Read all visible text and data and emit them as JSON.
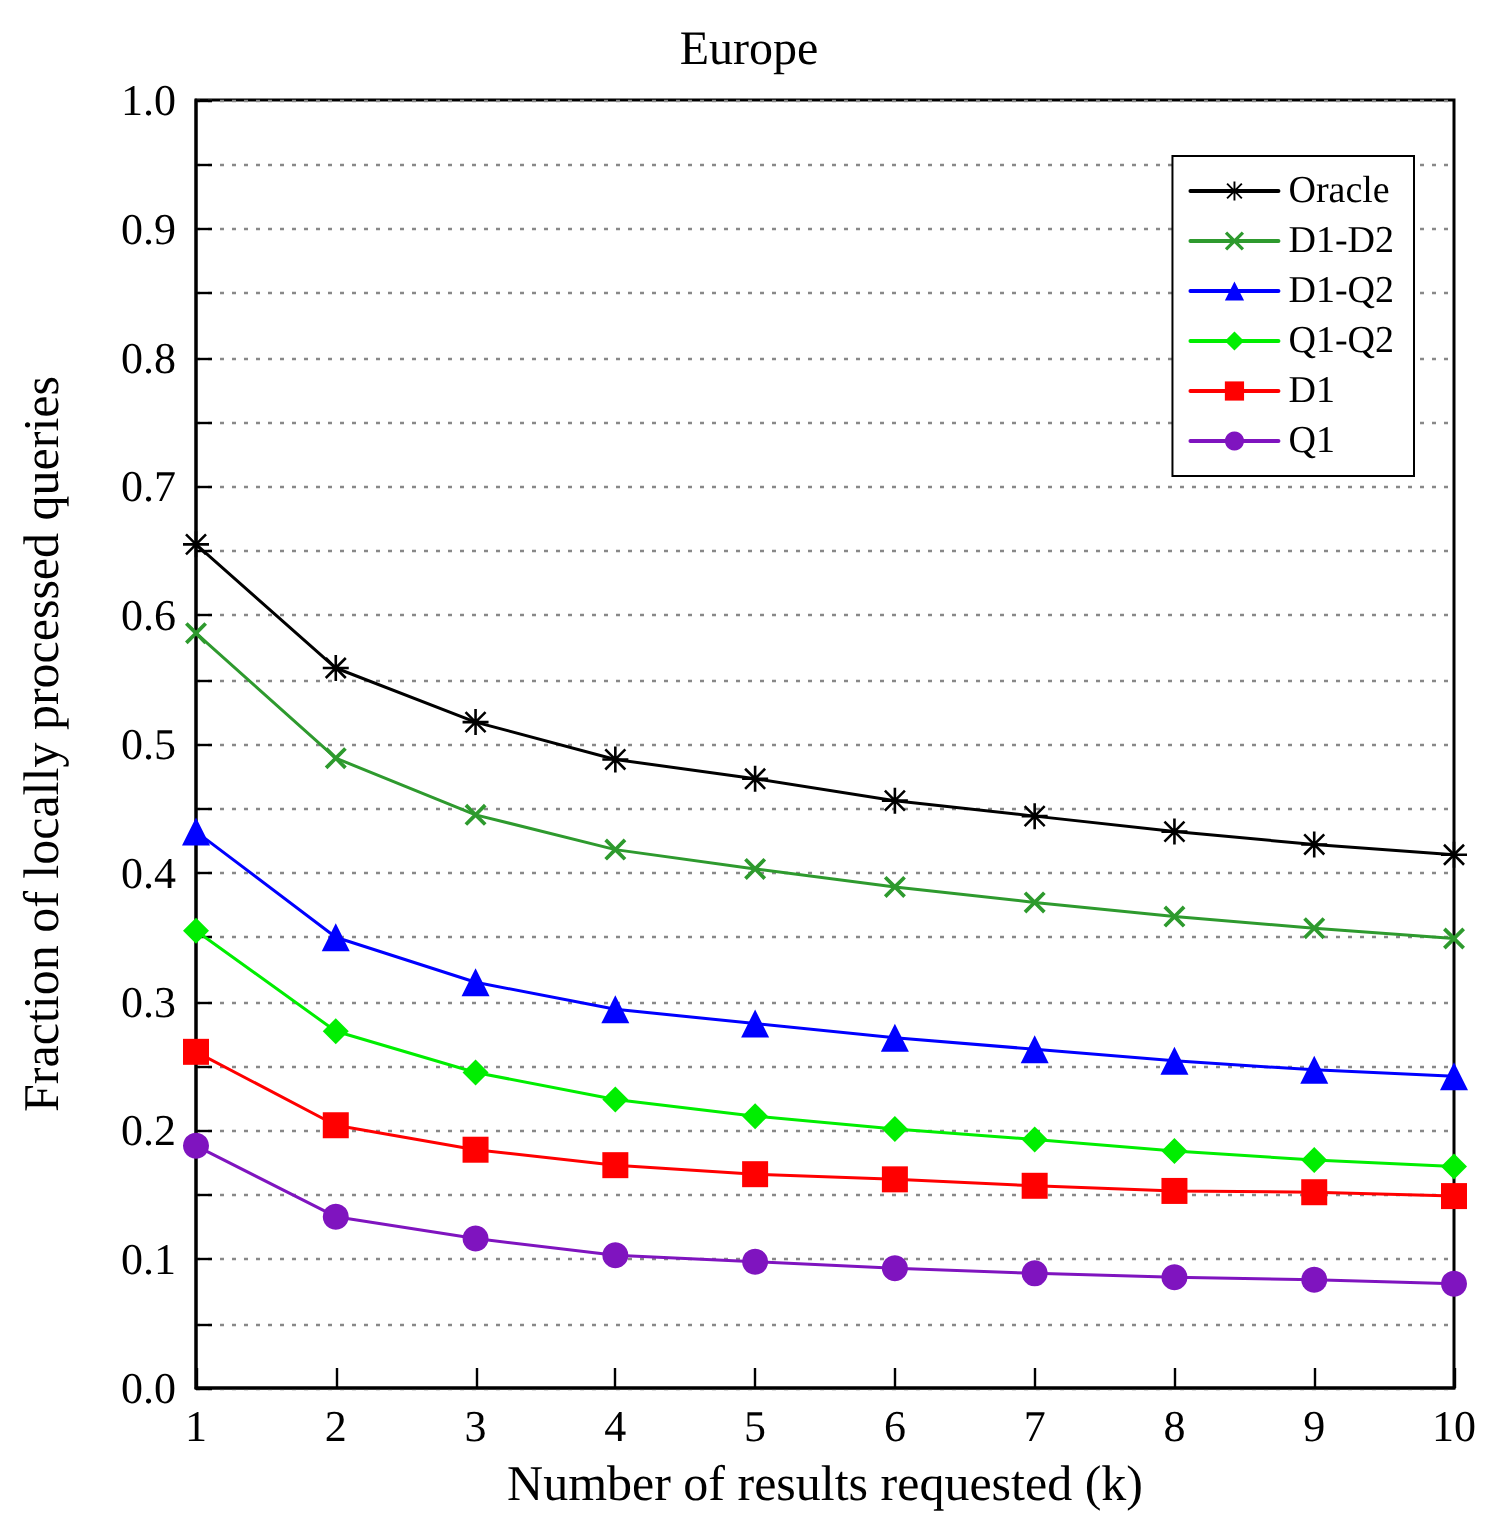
{
  "chart_data": {
    "type": "line",
    "title": "Europe",
    "xlabel": "Number of results requested (k)",
    "ylabel": "Fraction of locally processed queries",
    "x": [
      1,
      2,
      3,
      4,
      5,
      6,
      7,
      8,
      9,
      10
    ],
    "series": [
      {
        "name": "Oracle",
        "color": "#000000",
        "marker": "star",
        "values": [
          0.655,
          0.559,
          0.517,
          0.488,
          0.473,
          0.456,
          0.444,
          0.432,
          0.422,
          0.414
        ]
      },
      {
        "name": "D1-D2",
        "color": "#2e9a2e",
        "marker": "cross",
        "values": [
          0.586,
          0.489,
          0.445,
          0.418,
          0.403,
          0.389,
          0.377,
          0.366,
          0.357,
          0.349
        ]
      },
      {
        "name": "D1-Q2",
        "color": "#0000ff",
        "marker": "triangle",
        "values": [
          0.432,
          0.35,
          0.315,
          0.294,
          0.283,
          0.272,
          0.263,
          0.254,
          0.247,
          0.242
        ]
      },
      {
        "name": "Q1-Q2",
        "color": "#00ee00",
        "marker": "diamond",
        "values": [
          0.355,
          0.277,
          0.245,
          0.224,
          0.211,
          0.201,
          0.193,
          0.184,
          0.177,
          0.172
        ]
      },
      {
        "name": "D1",
        "color": "#ff0000",
        "marker": "square",
        "values": [
          0.261,
          0.204,
          0.185,
          0.173,
          0.166,
          0.162,
          0.157,
          0.153,
          0.152,
          0.149
        ]
      },
      {
        "name": "Q1",
        "color": "#7f14bf",
        "marker": "circle",
        "values": [
          0.188,
          0.133,
          0.116,
          0.103,
          0.098,
          0.093,
          0.089,
          0.086,
          0.084,
          0.081
        ]
      }
    ],
    "xlim": [
      1,
      10
    ],
    "xticks": [
      1,
      2,
      3,
      4,
      5,
      6,
      7,
      8,
      9,
      10
    ],
    "ylim": [
      0,
      1
    ],
    "yticks": [
      {
        "value": 0,
        "label": "0.0"
      },
      {
        "value": 0.05,
        "label": null
      },
      {
        "value": 0.1,
        "label": "0.1"
      },
      {
        "value": 0.15,
        "label": null
      },
      {
        "value": 0.2,
        "label": "0.2"
      },
      {
        "value": 0.25,
        "label": null
      },
      {
        "value": 0.3,
        "label": "0.3"
      },
      {
        "value": 0.35,
        "label": null
      },
      {
        "value": 0.4,
        "label": "0.4"
      },
      {
        "value": 0.45,
        "label": null
      },
      {
        "value": 0.5,
        "label": "0.5"
      },
      {
        "value": 0.55,
        "label": null
      },
      {
        "value": 0.6,
        "label": "0.6"
      },
      {
        "value": 0.65,
        "label": null
      },
      {
        "value": 0.7,
        "label": "0.7"
      },
      {
        "value": 0.75,
        "label": null
      },
      {
        "value": 0.8,
        "label": "0.8"
      },
      {
        "value": 0.85,
        "label": null
      },
      {
        "value": 0.9,
        "label": "0.9"
      },
      {
        "value": 0.95,
        "label": null
      },
      {
        "value": 1.0,
        "label": "1.0"
      }
    ],
    "grid": "y",
    "legend": "top right",
    "line_style": "solid"
  }
}
